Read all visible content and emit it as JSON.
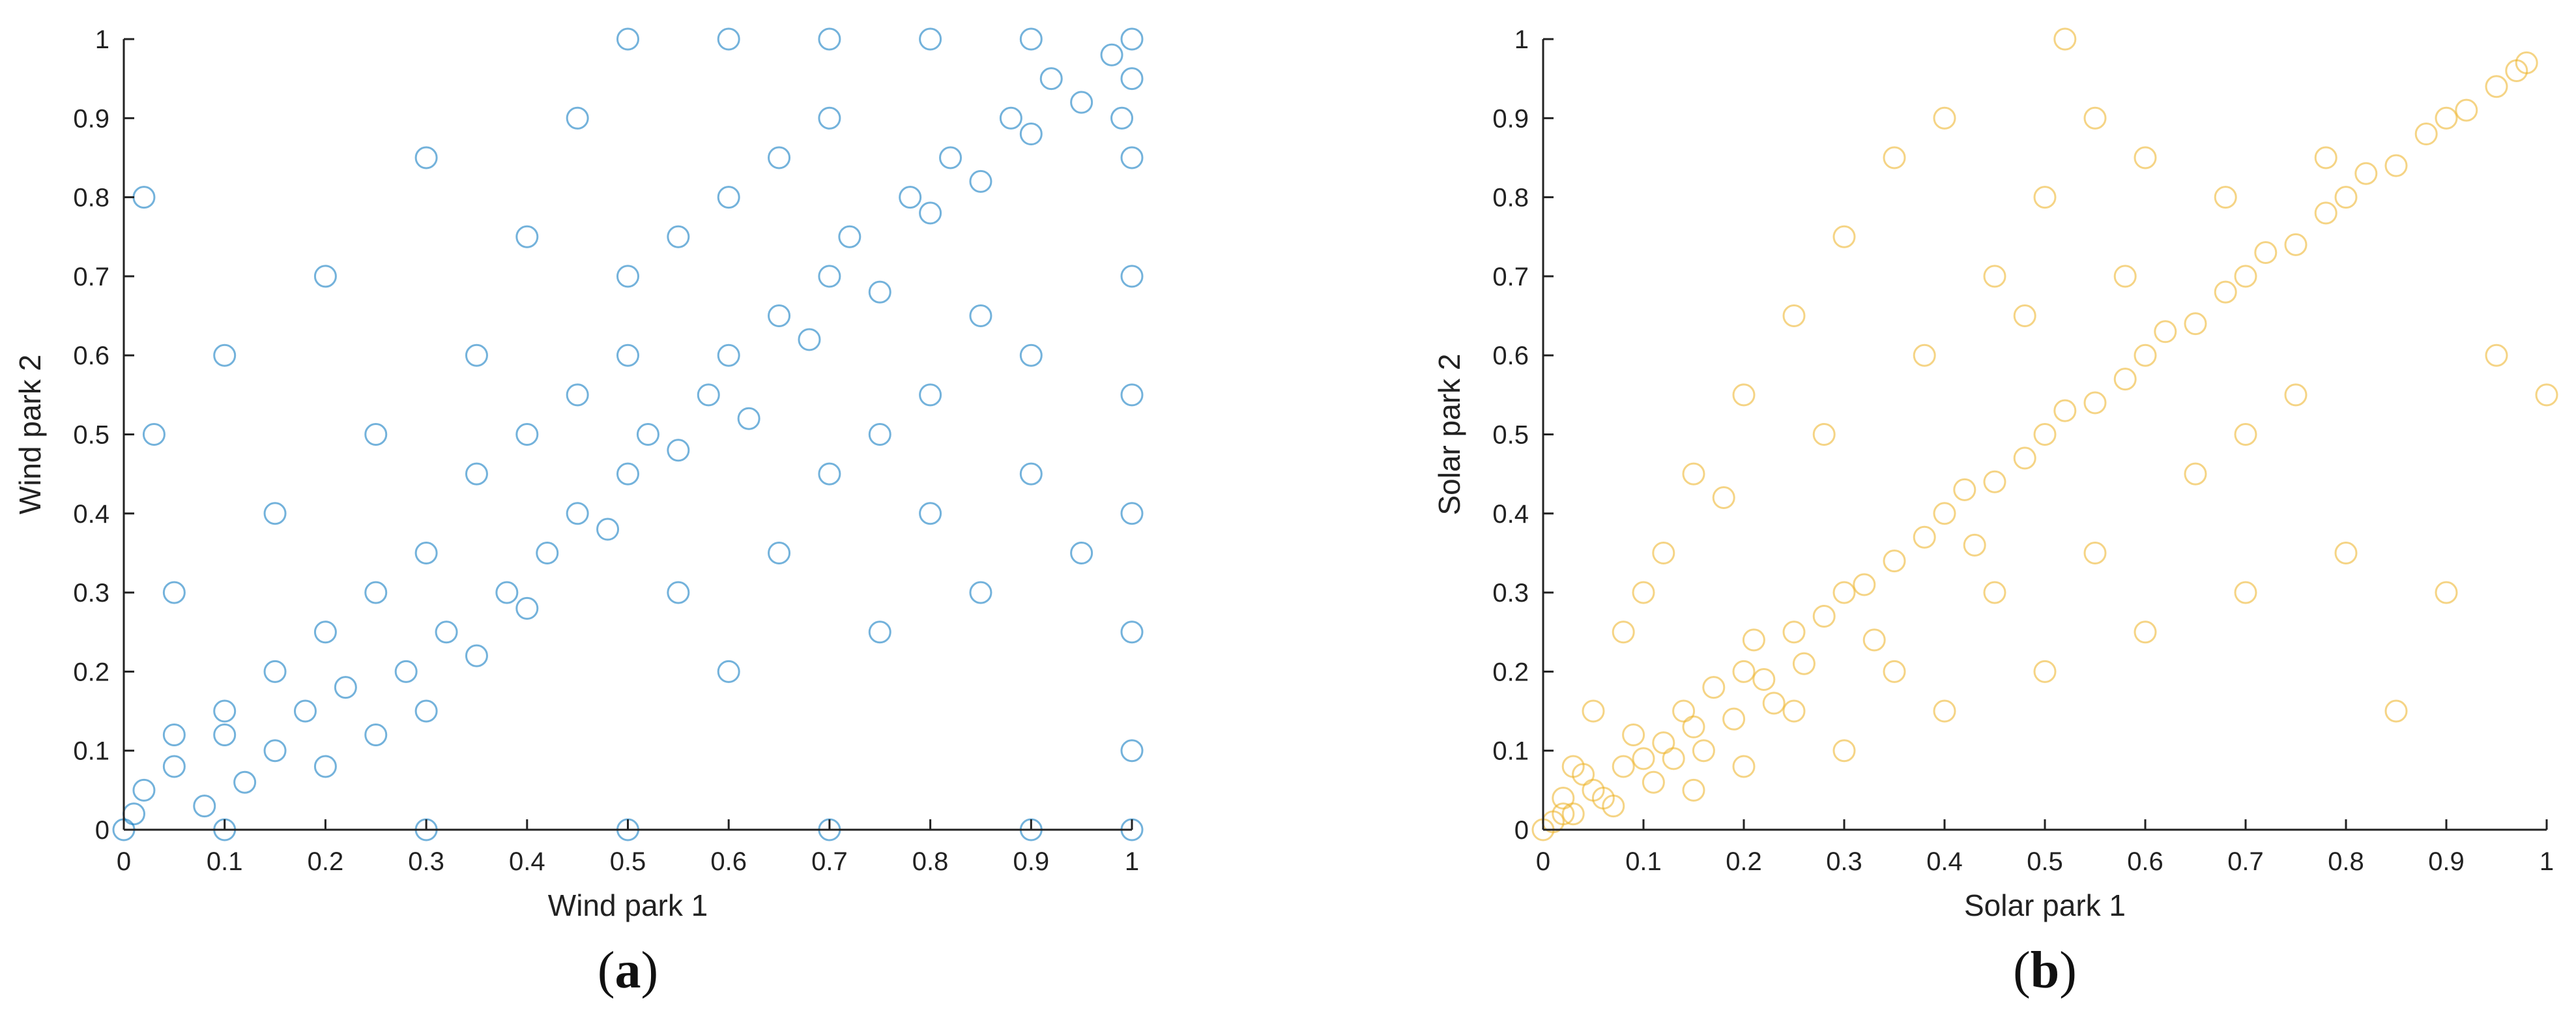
{
  "chart_data": [
    {
      "type": "scatter",
      "panel_label": "a",
      "xlabel": "Wind park 1",
      "ylabel": "Wind park 2",
      "xlim": [
        0,
        1
      ],
      "ylim": [
        0,
        1
      ],
      "xticks": [
        "0",
        "0.1",
        "0.2",
        "0.3",
        "0.4",
        "0.5",
        "0.6",
        "0.7",
        "0.8",
        "0.9",
        "1"
      ],
      "yticks": [
        "0",
        "0.1",
        "0.2",
        "0.3",
        "0.4",
        "0.5",
        "0.6",
        "0.7",
        "0.8",
        "0.9",
        "1"
      ],
      "marker": "hollow circle",
      "color": "#0072BD",
      "grid": false,
      "points": [
        [
          0.02,
          0.05
        ],
        [
          0.05,
          0.08
        ],
        [
          0.08,
          0.03
        ],
        [
          0.1,
          0.12
        ],
        [
          0.12,
          0.06
        ],
        [
          0.15,
          0.1
        ],
        [
          0.18,
          0.15
        ],
        [
          0.2,
          0.08
        ],
        [
          0.22,
          0.18
        ],
        [
          0.25,
          0.12
        ],
        [
          0.28,
          0.2
        ],
        [
          0.3,
          0.15
        ],
        [
          0.32,
          0.25
        ],
        [
          0.35,
          0.22
        ],
        [
          0.38,
          0.3
        ],
        [
          0.4,
          0.28
        ],
        [
          0.42,
          0.35
        ],
        [
          0.45,
          0.4
        ],
        [
          0.48,
          0.38
        ],
        [
          0.5,
          0.45
        ],
        [
          0.52,
          0.5
        ],
        [
          0.55,
          0.48
        ],
        [
          0.58,
          0.55
        ],
        [
          0.6,
          0.6
        ],
        [
          0.62,
          0.52
        ],
        [
          0.65,
          0.65
        ],
        [
          0.68,
          0.62
        ],
        [
          0.7,
          0.7
        ],
        [
          0.72,
          0.75
        ],
        [
          0.75,
          0.68
        ],
        [
          0.78,
          0.8
        ],
        [
          0.8,
          0.78
        ],
        [
          0.82,
          0.85
        ],
        [
          0.85,
          0.82
        ],
        [
          0.88,
          0.9
        ],
        [
          0.9,
          0.88
        ],
        [
          0.92,
          0.95
        ],
        [
          0.95,
          0.92
        ],
        [
          0.98,
          0.98
        ],
        [
          1.0,
          1.0
        ],
        [
          1.0,
          0.95
        ],
        [
          0.99,
          0.9
        ],
        [
          1.0,
          0.85
        ],
        [
          1.0,
          0.7
        ],
        [
          1.0,
          0.55
        ],
        [
          1.0,
          0.4
        ],
        [
          1.0,
          0.25
        ],
        [
          1.0,
          0.1
        ],
        [
          1.0,
          0.0
        ],
        [
          0.0,
          0.0
        ],
        [
          0.1,
          0.0
        ],
        [
          0.3,
          0.0
        ],
        [
          0.5,
          0.0
        ],
        [
          0.7,
          0.0
        ],
        [
          0.9,
          0.0
        ],
        [
          0.6,
          1.0
        ],
        [
          0.7,
          1.0
        ],
        [
          0.8,
          1.0
        ],
        [
          0.9,
          1.0
        ],
        [
          0.5,
          1.0
        ],
        [
          0.05,
          0.3
        ],
        [
          0.03,
          0.5
        ],
        [
          0.02,
          0.8
        ],
        [
          0.1,
          0.6
        ],
        [
          0.15,
          0.4
        ],
        [
          0.2,
          0.7
        ],
        [
          0.25,
          0.5
        ],
        [
          0.3,
          0.85
        ],
        [
          0.35,
          0.6
        ],
        [
          0.4,
          0.75
        ],
        [
          0.45,
          0.9
        ],
        [
          0.5,
          0.7
        ],
        [
          0.55,
          0.3
        ],
        [
          0.6,
          0.2
        ],
        [
          0.65,
          0.35
        ],
        [
          0.7,
          0.45
        ],
        [
          0.75,
          0.25
        ],
        [
          0.8,
          0.4
        ],
        [
          0.85,
          0.3
        ],
        [
          0.9,
          0.45
        ],
        [
          0.95,
          0.35
        ],
        [
          0.9,
          0.6
        ],
        [
          0.85,
          0.65
        ],
        [
          0.8,
          0.55
        ],
        [
          0.75,
          0.5
        ],
        [
          0.7,
          0.9
        ],
        [
          0.65,
          0.85
        ],
        [
          0.6,
          0.8
        ],
        [
          0.55,
          0.75
        ],
        [
          0.5,
          0.6
        ],
        [
          0.45,
          0.55
        ],
        [
          0.4,
          0.5
        ],
        [
          0.35,
          0.45
        ],
        [
          0.3,
          0.35
        ],
        [
          0.25,
          0.3
        ],
        [
          0.2,
          0.25
        ],
        [
          0.15,
          0.2
        ],
        [
          0.1,
          0.15
        ],
        [
          0.05,
          0.12
        ],
        [
          0.01,
          0.02
        ]
      ]
    },
    {
      "type": "scatter",
      "panel_label": "b",
      "xlabel": "Solar park 1",
      "ylabel": "Solar park 2",
      "xlim": [
        0,
        1
      ],
      "ylim": [
        0,
        1
      ],
      "xticks": [
        "0",
        "0.1",
        "0.2",
        "0.3",
        "0.4",
        "0.5",
        "0.6",
        "0.7",
        "0.8",
        "0.9",
        "1"
      ],
      "yticks": [
        "0",
        "0.1",
        "0.2",
        "0.3",
        "0.4",
        "0.5",
        "0.6",
        "0.7",
        "0.8",
        "0.9",
        "1"
      ],
      "marker": "hollow circle",
      "color": "#EDB120",
      "grid": false,
      "points": [
        [
          0.0,
          0.0
        ],
        [
          0.01,
          0.01
        ],
        [
          0.02,
          0.02
        ],
        [
          0.03,
          0.02
        ],
        [
          0.02,
          0.04
        ],
        [
          0.05,
          0.05
        ],
        [
          0.06,
          0.04
        ],
        [
          0.04,
          0.07
        ],
        [
          0.08,
          0.08
        ],
        [
          0.1,
          0.09
        ],
        [
          0.09,
          0.12
        ],
        [
          0.12,
          0.11
        ],
        [
          0.14,
          0.15
        ],
        [
          0.15,
          0.13
        ],
        [
          0.17,
          0.18
        ],
        [
          0.2,
          0.2
        ],
        [
          0.22,
          0.19
        ],
        [
          0.21,
          0.24
        ],
        [
          0.25,
          0.25
        ],
        [
          0.28,
          0.27
        ],
        [
          0.3,
          0.3
        ],
        [
          0.32,
          0.31
        ],
        [
          0.35,
          0.34
        ],
        [
          0.38,
          0.37
        ],
        [
          0.4,
          0.4
        ],
        [
          0.42,
          0.43
        ],
        [
          0.45,
          0.44
        ],
        [
          0.48,
          0.47
        ],
        [
          0.5,
          0.5
        ],
        [
          0.52,
          0.53
        ],
        [
          0.55,
          0.54
        ],
        [
          0.58,
          0.57
        ],
        [
          0.6,
          0.6
        ],
        [
          0.62,
          0.63
        ],
        [
          0.65,
          0.64
        ],
        [
          0.68,
          0.68
        ],
        [
          0.7,
          0.7
        ],
        [
          0.72,
          0.73
        ],
        [
          0.75,
          0.74
        ],
        [
          0.78,
          0.78
        ],
        [
          0.8,
          0.8
        ],
        [
          0.82,
          0.83
        ],
        [
          0.85,
          0.84
        ],
        [
          0.88,
          0.88
        ],
        [
          0.9,
          0.9
        ],
        [
          0.92,
          0.91
        ],
        [
          0.95,
          0.94
        ],
        [
          0.97,
          0.96
        ],
        [
          0.98,
          0.97
        ],
        [
          1.0,
          0.55
        ],
        [
          0.1,
          0.3
        ],
        [
          0.15,
          0.45
        ],
        [
          0.2,
          0.55
        ],
        [
          0.25,
          0.65
        ],
        [
          0.3,
          0.75
        ],
        [
          0.35,
          0.85
        ],
        [
          0.4,
          0.9
        ],
        [
          0.45,
          0.7
        ],
        [
          0.5,
          0.8
        ],
        [
          0.55,
          0.9
        ],
        [
          0.6,
          0.85
        ],
        [
          0.52,
          1.0
        ],
        [
          0.3,
          0.1
        ],
        [
          0.4,
          0.15
        ],
        [
          0.5,
          0.2
        ],
        [
          0.6,
          0.25
        ],
        [
          0.7,
          0.3
        ],
        [
          0.8,
          0.35
        ],
        [
          0.85,
          0.15
        ],
        [
          0.9,
          0.3
        ],
        [
          0.95,
          0.6
        ],
        [
          0.65,
          0.45
        ],
        [
          0.7,
          0.5
        ],
        [
          0.75,
          0.55
        ],
        [
          0.55,
          0.35
        ],
        [
          0.45,
          0.3
        ],
        [
          0.35,
          0.2
        ],
        [
          0.25,
          0.15
        ],
        [
          0.2,
          0.08
        ],
        [
          0.15,
          0.05
        ],
        [
          0.05,
          0.15
        ],
        [
          0.08,
          0.25
        ],
        [
          0.12,
          0.35
        ],
        [
          0.18,
          0.42
        ],
        [
          0.28,
          0.5
        ],
        [
          0.38,
          0.6
        ],
        [
          0.48,
          0.65
        ],
        [
          0.58,
          0.7
        ],
        [
          0.68,
          0.8
        ],
        [
          0.78,
          0.85
        ],
        [
          0.03,
          0.08
        ],
        [
          0.07,
          0.03
        ],
        [
          0.11,
          0.06
        ],
        [
          0.13,
          0.09
        ],
        [
          0.16,
          0.1
        ],
        [
          0.19,
          0.14
        ],
        [
          0.23,
          0.16
        ],
        [
          0.26,
          0.21
        ],
        [
          0.33,
          0.24
        ],
        [
          0.43,
          0.36
        ]
      ]
    }
  ]
}
